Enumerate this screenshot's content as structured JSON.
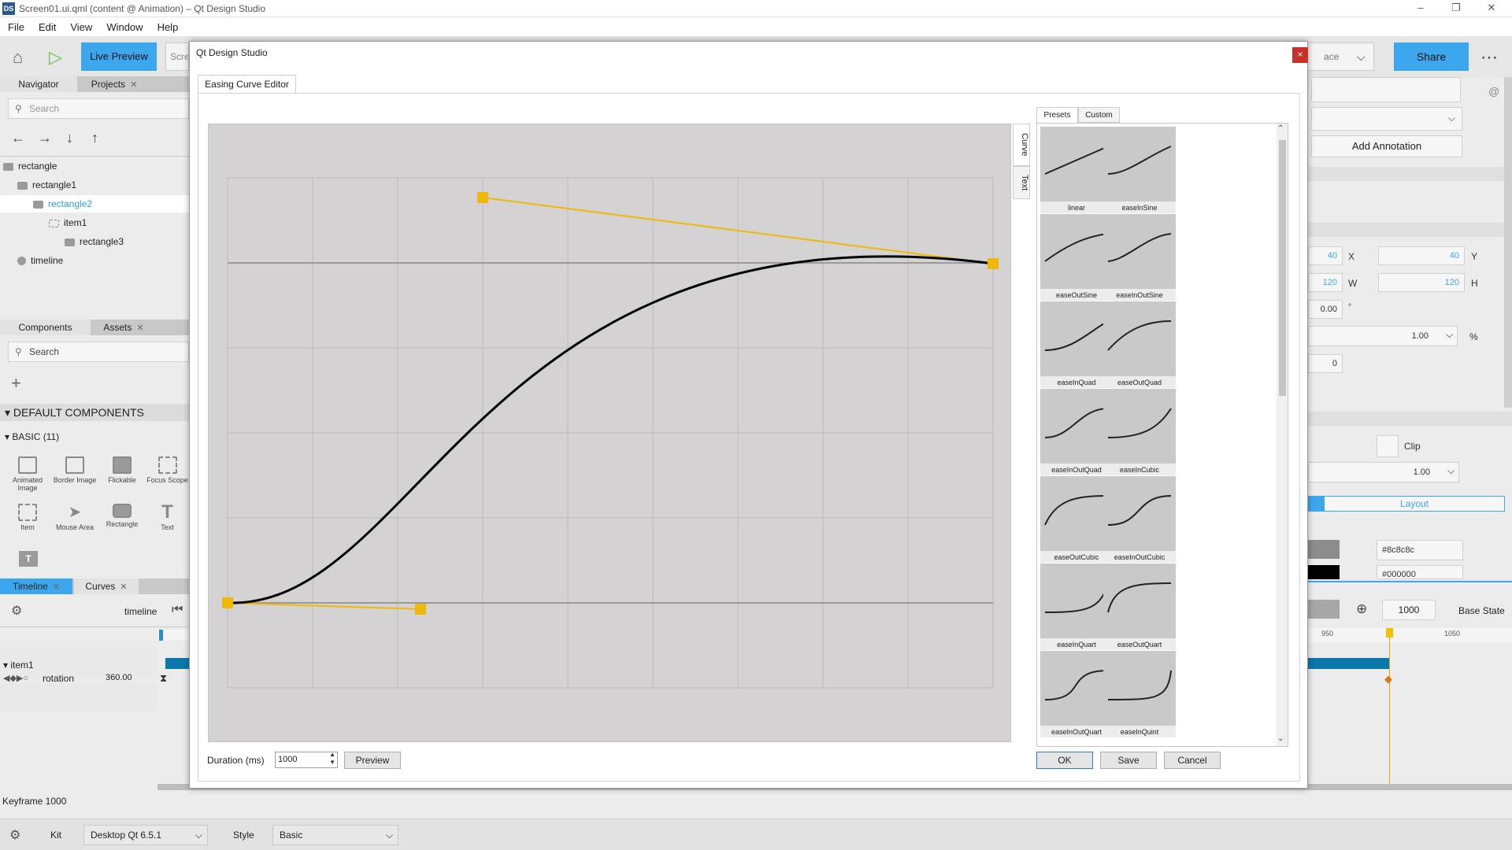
{
  "window": {
    "logo": "DS",
    "title": "Screen01.ui.qml (content @ Animation) – Qt Design Studio",
    "min": "–",
    "max": "❐",
    "close": "✕"
  },
  "menu": [
    "File",
    "Edit",
    "View",
    "Window",
    "Help"
  ],
  "toolbar": {
    "live_preview": "Live Preview",
    "screen_field": "Scree",
    "workspace_field": "ace",
    "share": "Share",
    "more": "⋯"
  },
  "navigator": {
    "tabs": [
      "Navigator",
      "Projects"
    ],
    "search_placeholder": "Search",
    "arrows": [
      "←",
      "→",
      "↓",
      "↑"
    ],
    "tree": [
      "rectangle",
      "rectangle1",
      "rectangle2",
      "item1",
      "rectangle3",
      "timeline"
    ]
  },
  "components": {
    "tabs": [
      "Components",
      "Assets"
    ],
    "search_placeholder": "Search",
    "add": "+",
    "section": "DEFAULT COMPONENTS",
    "subsection": "BASIC (11)",
    "items": [
      "Animated Image",
      "Border Image",
      "Flickable",
      "Focus Scope",
      "Item",
      "Mouse Area",
      "Rectangle",
      "Text"
    ]
  },
  "timeline": {
    "tabs": [
      "Timeline",
      "Curves"
    ],
    "name": "timeline",
    "item": "item1",
    "property": "rotation",
    "value": "360.00",
    "keyframe_status": "Keyframe 1000",
    "end_frame": "1000",
    "state": "Base State",
    "ruler": [
      "950",
      "1050"
    ]
  },
  "properties": {
    "add_annotation": "Add Annotation",
    "x": "40",
    "x_label": "X",
    "y": "40",
    "y_label": "Y",
    "w": "120",
    "w_label": "W",
    "h": "120",
    "h_label": "H",
    "rotation": "0.00",
    "rotation_unit": "°",
    "scale": "1.00",
    "scale_unit": "%",
    "z": "0",
    "clip": "Clip",
    "opacity": "1.00",
    "layout_tab": "Layout",
    "color1": "#8c8c8c",
    "color2": "#000000"
  },
  "statusbar": {
    "kit_label": "Kit",
    "kit": "Desktop Qt 6.5.1",
    "style_label": "Style",
    "style": "Basic"
  },
  "dialog": {
    "title": "Qt Design Studio",
    "close": "×",
    "tab": "Easing Curve Editor",
    "side_tabs": [
      "Curve",
      "Text"
    ],
    "preset_tabs": [
      "Presets",
      "Custom"
    ],
    "presets": [
      "linear",
      "easeInSine",
      "easeOutSine",
      "easeInOutSine",
      "easeInQuad",
      "easeOutQuad",
      "easeInOutQuad",
      "easeInCubic",
      "easeOutCubic",
      "easeInOutCubic",
      "easeInQuart",
      "easeOutQuart",
      "easeInOutQuart",
      "easeInQuint"
    ],
    "duration_label": "Duration (ms)",
    "duration": "1000",
    "preview": "Preview",
    "ok": "OK",
    "save": "Save",
    "cancel": "Cancel"
  },
  "colors": {
    "accent": "#3da7ed",
    "handle": "#f0b80c",
    "curve": "#000000"
  }
}
